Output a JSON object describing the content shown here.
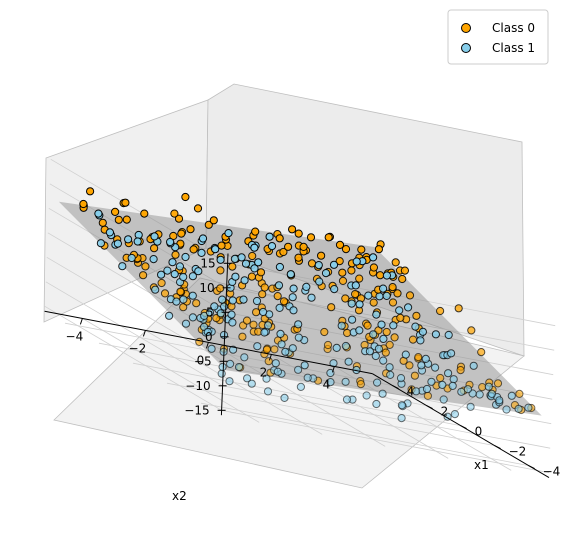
{
  "chart_data": {
    "type": "scatter",
    "projection": "3d",
    "xlabel": "x1",
    "ylabel": "x2",
    "zlabel": "",
    "xlim": [
      -5,
      5
    ],
    "ylim": [
      -5,
      5
    ],
    "zlim": [
      -16,
      17
    ],
    "x_ticks": [
      -4,
      -2,
      0,
      2,
      4
    ],
    "y_ticks": [
      -4,
      -2,
      0,
      2,
      4
    ],
    "z_ticks": [
      -15,
      -10,
      -5,
      0,
      5,
      10,
      15
    ],
    "grid": true,
    "legend_position": "top-right",
    "decision_plane": {
      "color": "#888888",
      "opacity": 0.45
    },
    "series": [
      {
        "name": "Class 0",
        "color": "#FFA500",
        "edge_color": "#000000"
      },
      {
        "name": "Class 1",
        "color": "#87CEEB",
        "edge_color": "#000000"
      }
    ]
  }
}
